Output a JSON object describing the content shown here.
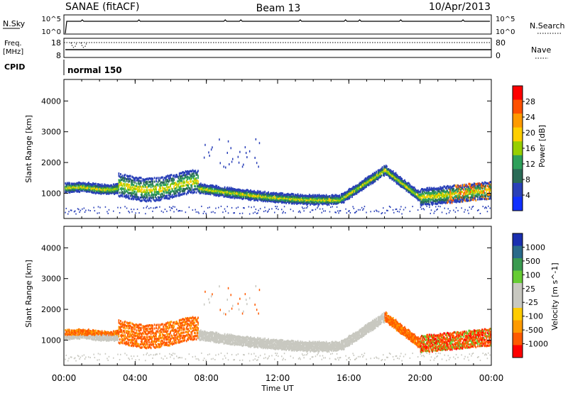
{
  "header": {
    "station": "SANAE (fitACF)",
    "beam": "Beam 13",
    "date": "10/Apr/2013"
  },
  "summary_panels": {
    "nsky_label": "N.Sky",
    "nsearch_label": "N.Search",
    "nsky_top_tick": "10^5",
    "nsky_bottom_tick": "10^0",
    "freq_label_line1": "Freq.",
    "freq_label_line2": "[MHz]",
    "freq_ticks": [
      "18",
      "8"
    ],
    "nave_label": "Nave",
    "nave_ticks": [
      "80",
      "0"
    ],
    "cpid_label": "CPID",
    "cpid_text": "normal 150"
  },
  "chart_data": [
    {
      "type": "heatmap",
      "name": "power",
      "ylabel": "Slant Range [km]",
      "y_ticks": [
        1000,
        2000,
        3000,
        4000
      ],
      "ylim": [
        180,
        4700
      ],
      "x_ticks": [
        "00:00",
        "04:00",
        "08:00",
        "12:00",
        "16:00",
        "20:00",
        "00:00"
      ],
      "xlim_hours": [
        0,
        24
      ],
      "colorbar_label": "Power [dB]",
      "colorbar_ticks": [
        "28",
        "24",
        "20",
        "16",
        "12",
        "8",
        "4"
      ],
      "colorbar_colors": [
        "#ff0000",
        "#ff5000",
        "#ff9a00",
        "#ffcf00",
        "#97cf00",
        "#2ea05a",
        "#2a6b56",
        "#2a40b8",
        "#1030ff"
      ]
    },
    {
      "type": "heatmap",
      "name": "velocity",
      "ylabel": "Slant Range [km]",
      "y_ticks": [
        1000,
        2000,
        3000,
        4000
      ],
      "ylim": [
        180,
        4700
      ],
      "x_ticks": [
        "00:00",
        "04:00",
        "08:00",
        "12:00",
        "16:00",
        "20:00",
        "00:00"
      ],
      "xlim_hours": [
        0,
        24
      ],
      "xlabel": "Time UT",
      "colorbar_label": "Velocity [m s^-1]",
      "colorbar_ticks": [
        "1000",
        "500",
        "100",
        "25",
        "-25",
        "-100",
        "-500",
        "-1000"
      ],
      "colorbar_colors": [
        "#1a2fb0",
        "#2a6a8a",
        "#3a9a50",
        "#66cc33",
        "#c8c8c0",
        "#c8c8c0",
        "#ffcc00",
        "#ff9a00",
        "#ff5a00",
        "#ff0000"
      ]
    }
  ]
}
